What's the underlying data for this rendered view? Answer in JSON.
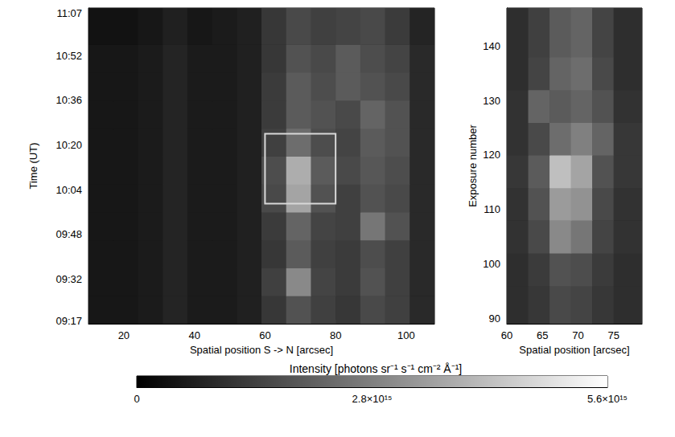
{
  "chart_data": [
    {
      "type": "heatmap",
      "x_label": "Spatial position S -> N [arcsec]",
      "y_label": "Time (UT)",
      "xlim": [
        10,
        108
      ],
      "xticks": [
        20,
        40,
        60,
        80,
        100
      ],
      "ylim": [
        556,
        669
      ],
      "yticks": [
        {
          "value": 557,
          "label": "09:17"
        },
        {
          "value": 572,
          "label": "09:32"
        },
        {
          "value": 588,
          "label": "09:48"
        },
        {
          "value": 604,
          "label": "10:04"
        },
        {
          "value": 620,
          "label": "10:20"
        },
        {
          "value": 636,
          "label": "10:36"
        },
        {
          "value": 652,
          "label": "10:52"
        },
        {
          "value": 667,
          "label": "11:07"
        }
      ],
      "grid": false,
      "x_edges": [
        10,
        17,
        24,
        31,
        38,
        45,
        52,
        59,
        66,
        73,
        80,
        87,
        94,
        101,
        108
      ],
      "y_edges": [
        556,
        566,
        576,
        586,
        596,
        606,
        616,
        626,
        636,
        646,
        656,
        669
      ],
      "cells": [
        [
          500000000000000.0,
          500000000000000.0,
          600000000000000.0,
          800000000000000.0,
          600000000000000.0,
          600000000000000.0,
          700000000000000.0,
          1200000000000000.0,
          1800000000000000.0,
          1400000000000000.0,
          1200000000000000.0,
          1600000000000000.0,
          1400000000000000.0,
          900000000000000.0
        ],
        [
          500000000000000.0,
          500000000000000.0,
          600000000000000.0,
          800000000000000.0,
          600000000000000.0,
          600000000000000.0,
          700000000000000.0,
          1400000000000000.0,
          3000000000000000.0,
          1500000000000000.0,
          1300000000000000.0,
          1800000000000000.0,
          1400000000000000.0,
          900000000000000.0
        ],
        [
          500000000000000.0,
          500000000000000.0,
          600000000000000.0,
          800000000000000.0,
          600000000000000.0,
          600000000000000.0,
          700000000000000.0,
          1200000000000000.0,
          2000000000000000.0,
          1400000000000000.0,
          1300000000000000.0,
          1700000000000000.0,
          1400000000000000.0,
          900000000000000.0
        ],
        [
          500000000000000.0,
          500000000000000.0,
          600000000000000.0,
          800000000000000.0,
          600000000000000.0,
          600000000000000.0,
          700000000000000.0,
          1300000000000000.0,
          2200000000000000.0,
          1500000000000000.0,
          1400000000000000.0,
          2600000000000000.0,
          1800000000000000.0,
          900000000000000.0
        ],
        [
          500000000000000.0,
          500000000000000.0,
          600000000000000.0,
          800000000000000.0,
          600000000000000.0,
          600000000000000.0,
          700000000000000.0,
          1600000000000000.0,
          3600000000000000.0,
          1800000000000000.0,
          1400000000000000.0,
          1800000000000000.0,
          1600000000000000.0,
          900000000000000.0
        ],
        [
          500000000000000.0,
          500000000000000.0,
          600000000000000.0,
          800000000000000.0,
          600000000000000.0,
          600000000000000.0,
          700000000000000.0,
          1700000000000000.0,
          3800000000000000.0,
          2000000000000000.0,
          1600000000000000.0,
          1900000000000000.0,
          1700000000000000.0,
          900000000000000.0
        ],
        [
          500000000000000.0,
          500000000000000.0,
          600000000000000.0,
          800000000000000.0,
          600000000000000.0,
          600000000000000.0,
          700000000000000.0,
          1400000000000000.0,
          2400000000000000.0,
          1700000000000000.0,
          1500000000000000.0,
          2000000000000000.0,
          1800000000000000.0,
          900000000000000.0
        ],
        [
          500000000000000.0,
          500000000000000.0,
          600000000000000.0,
          800000000000000.0,
          600000000000000.0,
          600000000000000.0,
          700000000000000.0,
          1300000000000000.0,
          2000000000000000.0,
          1800000000000000.0,
          1600000000000000.0,
          2200000000000000.0,
          1800000000000000.0,
          900000000000000.0
        ],
        [
          500000000000000.0,
          500000000000000.0,
          600000000000000.0,
          800000000000000.0,
          600000000000000.0,
          600000000000000.0,
          700000000000000.0,
          1300000000000000.0,
          2000000000000000.0,
          1700000000000000.0,
          2000000000000000.0,
          1800000000000000.0,
          1600000000000000.0,
          900000000000000.0
        ],
        [
          500000000000000.0,
          500000000000000.0,
          600000000000000.0,
          800000000000000.0,
          600000000000000.0,
          600000000000000.0,
          700000000000000.0,
          1200000000000000.0,
          1800000000000000.0,
          1600000000000000.0,
          2000000000000000.0,
          1700000000000000.0,
          1500000000000000.0,
          900000000000000.0
        ],
        [
          400000000000000.0,
          400000000000000.0,
          500000000000000.0,
          700000000000000.0,
          500000000000000.0,
          600000000000000.0,
          700000000000000.0,
          1200000000000000.0,
          1600000000000000.0,
          1400000000000000.0,
          1500000000000000.0,
          1600000000000000.0,
          1300000000000000.0,
          800000000000000.0
        ]
      ],
      "annotation_box": {
        "x": [
          60,
          80
        ],
        "y": [
          599,
          624
        ]
      }
    },
    {
      "type": "heatmap",
      "x_label": "Spatial position [arcsec]",
      "y_label": "Exposure number",
      "xlim": [
        60,
        79
      ],
      "xticks": [
        60,
        65,
        70,
        75
      ],
      "ylim": [
        89,
        147
      ],
      "yticks": [
        90,
        100,
        110,
        120,
        130,
        140
      ],
      "grid": false,
      "x_edges": [
        60,
        63,
        66,
        69,
        72,
        75,
        79
      ],
      "y_edges": [
        89,
        96,
        102,
        108,
        114,
        120,
        126,
        132,
        138,
        147
      ],
      "cells": [
        [
          1000000000000000.0,
          1200000000000000.0,
          1600000000000000.0,
          1500000000000000.0,
          1200000000000000.0,
          1000000000000000.0
        ],
        [
          1000000000000000.0,
          1300000000000000.0,
          1800000000000000.0,
          1700000000000000.0,
          1300000000000000.0,
          1000000000000000.0
        ],
        [
          1100000000000000.0,
          1600000000000000.0,
          3000000000000000.0,
          2600000000000000.0,
          1500000000000000.0,
          1100000000000000.0
        ],
        [
          1100000000000000.0,
          1800000000000000.0,
          3400000000000000.0,
          3200000000000000.0,
          1600000000000000.0,
          1100000000000000.0
        ],
        [
          1200000000000000.0,
          2000000000000000.0,
          4200000000000000.0,
          3600000000000000.0,
          1800000000000000.0,
          1200000000000000.0
        ],
        [
          1100000000000000.0,
          1600000000000000.0,
          2400000000000000.0,
          2800000000000000.0,
          2200000000000000.0,
          1200000000000000.0
        ],
        [
          1100000000000000.0,
          2200000000000000.0,
          2000000000000000.0,
          2200000000000000.0,
          1800000000000000.0,
          1100000000000000.0
        ],
        [
          1000000000000000.0,
          1500000000000000.0,
          2200000000000000.0,
          2400000000000000.0,
          1600000000000000.0,
          1000000000000000.0
        ],
        [
          1000000000000000.0,
          1400000000000000.0,
          2000000000000000.0,
          2200000000000000.0,
          1500000000000000.0,
          1000000000000000.0
        ]
      ]
    },
    {
      "type": "colorbar",
      "title": "Intensity [photons sr⁻¹ s⁻¹ cm⁻² Å⁻¹]",
      "colorlim": [
        0,
        5600000000000000.0
      ],
      "colorticks": [
        0,
        {
          "value": 2800000000000000.0,
          "label": "2.8×10¹⁵"
        },
        {
          "value": 5600000000000000.0,
          "label": "5.6×10¹⁵"
        }
      ]
    }
  ]
}
